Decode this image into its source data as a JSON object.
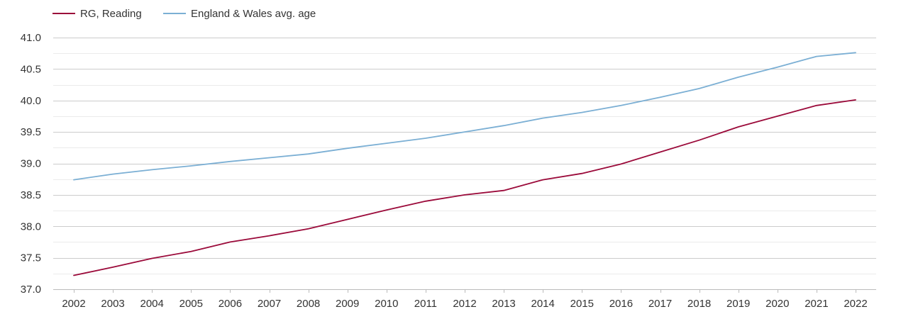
{
  "chart_data": {
    "type": "line",
    "title": "",
    "xlabel": "",
    "ylabel": "",
    "x": [
      2002,
      2003,
      2004,
      2005,
      2006,
      2007,
      2008,
      2009,
      2010,
      2011,
      2012,
      2013,
      2014,
      2015,
      2016,
      2017,
      2018,
      2019,
      2020,
      2021,
      2022
    ],
    "ylim": [
      37.0,
      41.0
    ],
    "yticks": [
      "37.0",
      "37.5",
      "38.0",
      "38.5",
      "39.0",
      "39.5",
      "40.0",
      "40.5",
      "41.0"
    ],
    "grid": true,
    "legend_position": "top-left",
    "series": [
      {
        "name": "RG, Reading",
        "color": "#9b0a3a",
        "values": [
          37.22,
          37.35,
          37.49,
          37.6,
          37.75,
          37.85,
          37.96,
          38.11,
          38.26,
          38.4,
          38.5,
          38.57,
          38.74,
          38.84,
          38.99,
          39.18,
          39.37,
          39.58,
          39.75,
          39.92,
          40.01
        ]
      },
      {
        "name": "England & Wales avg. age",
        "color": "#7bafd4",
        "values": [
          38.74,
          38.83,
          38.9,
          38.96,
          39.03,
          39.09,
          39.15,
          39.24,
          39.32,
          39.4,
          39.5,
          39.6,
          39.72,
          39.81,
          39.92,
          40.05,
          40.19,
          40.37,
          40.53,
          40.7,
          40.76
        ]
      }
    ]
  }
}
